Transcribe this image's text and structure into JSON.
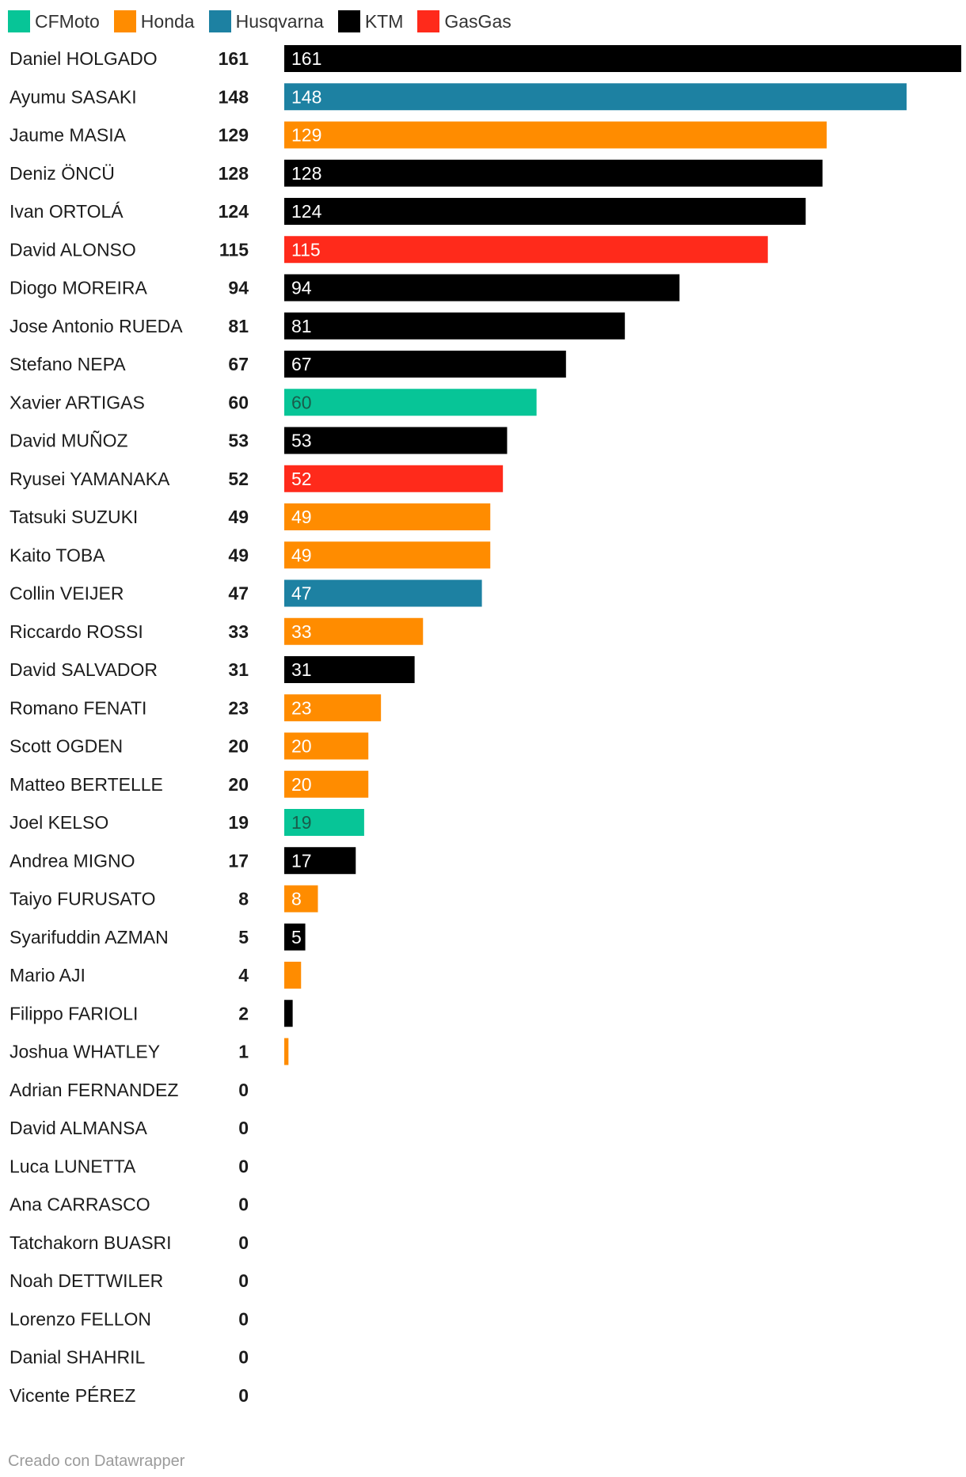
{
  "legend": [
    {
      "label": "CFMoto",
      "color": "#07c597"
    },
    {
      "label": "Honda",
      "color": "#ff8c00"
    },
    {
      "label": "Husqvarna",
      "color": "#1d81a2"
    },
    {
      "label": "KTM",
      "color": "#000000"
    },
    {
      "label": "GasGas",
      "color": "#ff2a1b"
    }
  ],
  "chart_data": {
    "type": "bar",
    "orientation": "horizontal",
    "title": "",
    "xlabel": "",
    "ylabel": "",
    "xlim": [
      0,
      161
    ],
    "grid": false,
    "legend_position": "top-left",
    "categories": [
      "Daniel HOLGADO",
      "Ayumu SASAKI",
      "Jaume MASIA",
      "Deniz ÖNCÜ",
      "Ivan ORTOLÁ",
      "David ALONSO",
      "Diogo MOREIRA",
      "Jose Antonio RUEDA",
      "Stefano NEPA",
      "Xavier ARTIGAS",
      "David MUÑOZ",
      "Ryusei YAMANAKA",
      "Tatsuki SUZUKI",
      "Kaito TOBA",
      "Collin VEIJER",
      "Riccardo ROSSI",
      "David SALVADOR",
      "Romano FENATI",
      "Scott OGDEN",
      "Matteo BERTELLE",
      "Joel KELSO",
      "Andrea MIGNO",
      "Taiyo FURUSATO",
      "Syarifuddin AZMAN",
      "Mario AJI",
      "Filippo FARIOLI",
      "Joshua WHATLEY",
      "Adrian FERNANDEZ",
      "David ALMANSA",
      "Luca LUNETTA",
      "Ana CARRASCO",
      "Tatchakorn BUASRI",
      "Noah DETTWILER",
      "Lorenzo FELLON",
      "Danial SHAHRIL",
      "Vicente PÉREZ"
    ],
    "values": [
      161,
      148,
      129,
      128,
      124,
      115,
      94,
      81,
      67,
      60,
      53,
      52,
      49,
      49,
      47,
      33,
      31,
      23,
      20,
      20,
      19,
      17,
      8,
      5,
      4,
      2,
      1,
      0,
      0,
      0,
      0,
      0,
      0,
      0,
      0,
      0
    ],
    "manufacturer": [
      "KTM",
      "Husqvarna",
      "Honda",
      "KTM",
      "KTM",
      "GasGas",
      "KTM",
      "KTM",
      "KTM",
      "CFMoto",
      "KTM",
      "GasGas",
      "Honda",
      "Honda",
      "Husqvarna",
      "Honda",
      "KTM",
      "Honda",
      "Honda",
      "Honda",
      "CFMoto",
      "KTM",
      "Honda",
      "KTM",
      "Honda",
      "KTM",
      "Honda",
      "",
      "",
      "",
      "",
      "",
      "",
      "",
      "",
      ""
    ]
  },
  "colors": {
    "bar_label_light": "#ffffff",
    "bar_label_on_cfmoto": "#1a5c4b"
  },
  "footer": {
    "credit": "Creado con Datawrapper"
  }
}
